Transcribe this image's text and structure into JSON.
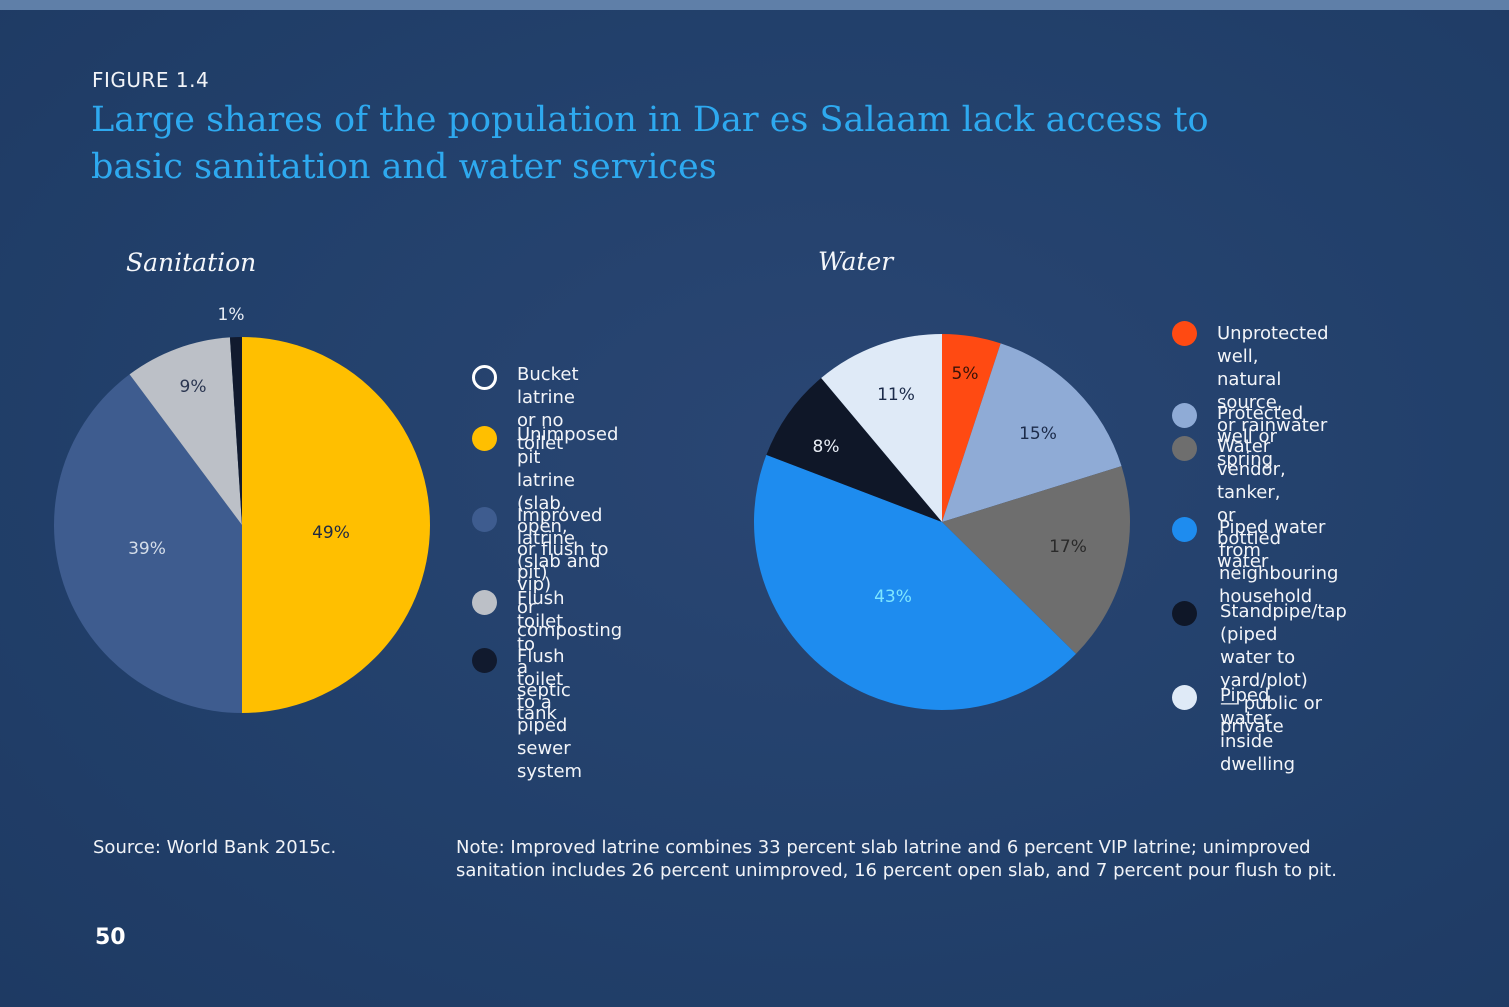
{
  "figure_label": "FIGURE 1.4",
  "title": "Large shares of the population in Dar es Salaam lack access to basic sanitation and water services",
  "source": "Source: World Bank 2015c.",
  "note": "Note: Improved latrine combines 33 percent slab latrine and 6 percent VIP latrine; unimproved sanitation includes 26 percent unimproved, 16 percent open slab, and 7 percent pour flush to pit.",
  "page_number": "50",
  "colors": {
    "background": "#22406b",
    "title": "#2ea9ef",
    "bucket_latrine": "none",
    "unimproved_pit": "#ffbf00",
    "improved_latrine": "#3e5c8f",
    "flush_septic": "#bcc0c7",
    "flush_sewer": "#111a2e",
    "unprotected_well": "#ff4a12",
    "protected_well": "#8fabd6",
    "water_vendor": "#6e6e6e",
    "piped_neighbour": "#1e8cef",
    "standpipe": "#0f1728",
    "piped_inside": "#dfeaf7"
  },
  "chart_data": [
    {
      "type": "pie",
      "title": "Sanitation",
      "categories": [
        "Bucket latrine or no toilet",
        "Unimposed pit latrine (slab, open, or flush to pit)",
        "Improved latrine (slab and vip) or composting",
        "Flush toilet to a septic tank",
        "Flush toilet to a piped sewer system"
      ],
      "values": [
        0,
        49,
        39,
        9,
        1
      ],
      "labels": [
        "",
        "49%",
        "39%",
        "9%",
        "1%"
      ],
      "slice_order": [
        "unimproved_pit",
        "improved_latrine",
        "flush_septic",
        "flush_sewer"
      ],
      "legend": [
        {
          "key": "bucket_latrine",
          "label": "Bucket latrine\nor no toilet",
          "color": "#ffffff",
          "hollow": true
        },
        {
          "key": "unimproved_pit",
          "label": "Unimposed pit\nlatrine (slab, open,\nor flush to pit)",
          "color": "#ffbf00"
        },
        {
          "key": "improved_latrine",
          "label": "Improved latrine\n(slab and vip)\nor composting",
          "color": "#3e5c8f"
        },
        {
          "key": "flush_septic",
          "label": "Flush toilet to\na septic tank",
          "color": "#bcc0c7"
        },
        {
          "key": "flush_sewer",
          "label": "Flush toilet to a\npiped sewer system",
          "color": "#111a2e"
        }
      ],
      "legend_placement": "right"
    },
    {
      "type": "pie",
      "title": "Water",
      "categories": [
        "Unprotected well, natural source, or rainwater",
        "Protected well or spring",
        "Water vendor, tanker, or bottled water",
        "Piped water from neighbouring household",
        "Standpipe/tap (piped water to yard/plot) — public or private",
        "Piped water inside dwelling"
      ],
      "values": [
        5,
        15,
        17,
        43,
        8,
        11
      ],
      "labels": [
        "5%",
        "15%",
        "17%",
        "43%",
        "8%",
        "11%"
      ],
      "legend": [
        {
          "key": "unprotected_well",
          "label": "Unprotected well,\nnatural source,\nor rainwater",
          "color": "#ff4a12"
        },
        {
          "key": "protected_well",
          "label": "Protected well or spring",
          "color": "#8fabd6"
        },
        {
          "key": "water_vendor",
          "label": "Water vendor,\ntanker, or\nbottled water",
          "color": "#6e6e6e"
        },
        {
          "key": "piped_neighbour",
          "label": "Piped water from\nneighbouring\nhousehold",
          "color": "#1e8cef"
        },
        {
          "key": "standpipe",
          "label": "Standpipe/tap (piped\nwater to yard/plot)\n— public or private",
          "color": "#0f1728"
        },
        {
          "key": "piped_inside",
          "label": "Piped water\ninside dwelling",
          "color": "#dfeaf7"
        }
      ],
      "legend_placement": "right"
    }
  ]
}
